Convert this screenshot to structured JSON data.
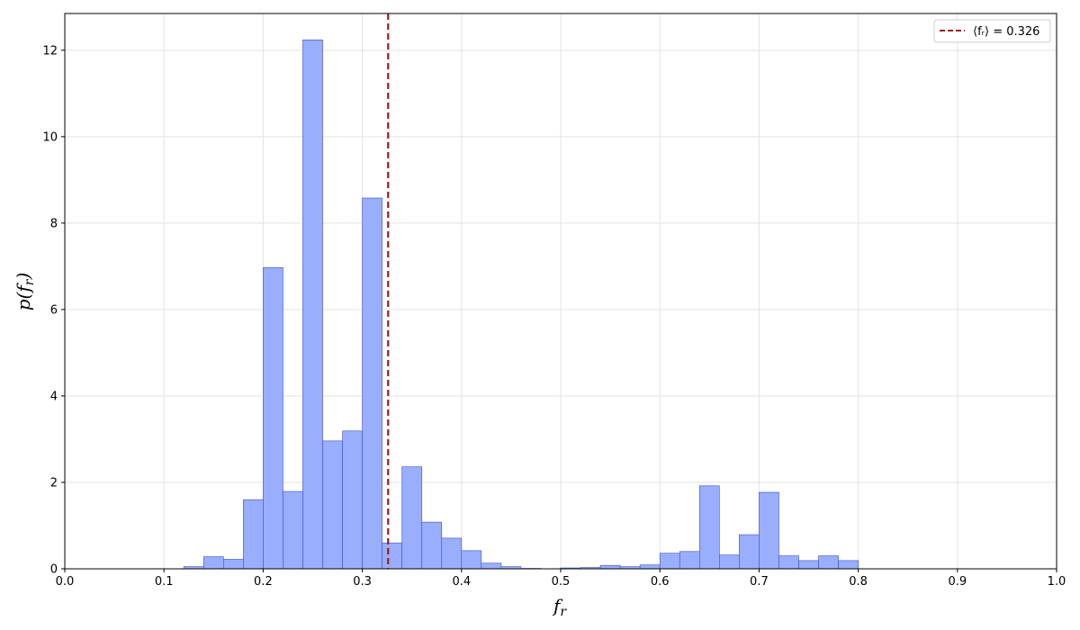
{
  "chart_data": {
    "type": "bar",
    "title": "",
    "xlabel": "f_r",
    "ylabel": "p(f_r)",
    "xlim": [
      0.0,
      1.0
    ],
    "ylim": [
      0,
      12.85
    ],
    "grid": true,
    "bin_width": 0.02,
    "bin_starts": [
      0.12,
      0.14,
      0.16,
      0.18,
      0.2,
      0.22,
      0.24,
      0.26,
      0.28,
      0.3,
      0.32,
      0.34,
      0.36,
      0.38,
      0.4,
      0.42,
      0.44,
      0.46,
      0.48,
      0.5,
      0.52,
      0.54,
      0.56,
      0.58,
      0.6,
      0.62,
      0.64,
      0.66,
      0.68,
      0.7,
      0.72,
      0.74,
      0.76,
      0.78
    ],
    "values": [
      0.05,
      0.28,
      0.22,
      1.6,
      6.97,
      1.79,
      12.24,
      2.96,
      3.19,
      8.58,
      0.6,
      2.36,
      1.08,
      0.71,
      0.42,
      0.13,
      0.05,
      0.01,
      0.0,
      0.02,
      0.03,
      0.08,
      0.05,
      0.09,
      0.36,
      0.4,
      1.92,
      0.32,
      0.79,
      1.77,
      0.3,
      0.19,
      0.3,
      0.19
    ],
    "bar_color": "#99aefd",
    "bar_edge_color": "#3f4fc2",
    "x_ticks": [
      0.0,
      0.1,
      0.2,
      0.3,
      0.4,
      0.5,
      0.6,
      0.7,
      0.8,
      0.9,
      1.0
    ],
    "x_tick_labels": [
      "0.0",
      "0.1",
      "0.2",
      "0.3",
      "0.4",
      "0.5",
      "0.6",
      "0.7",
      "0.8",
      "0.9",
      "1.0"
    ],
    "y_ticks": [
      0,
      2,
      4,
      6,
      8,
      10,
      12
    ],
    "y_tick_labels": [
      "0",
      "2",
      "4",
      "6",
      "8",
      "10",
      "12"
    ],
    "mean_line": {
      "value": 0.326,
      "color": "#a01c1c",
      "style": "dashed"
    },
    "legend": {
      "position": "top-right",
      "entries": [
        "⟨fᵣ⟩ = 0.326"
      ]
    }
  }
}
